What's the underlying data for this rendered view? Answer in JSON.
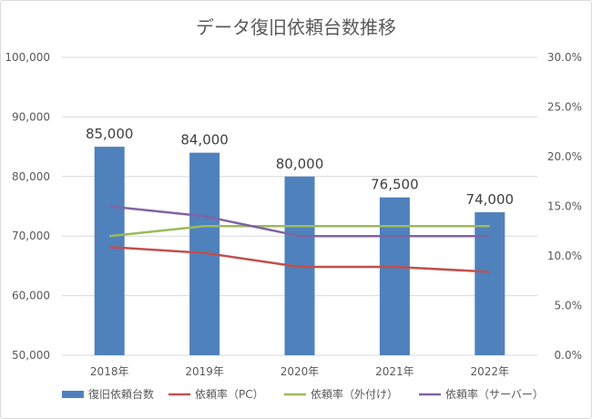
{
  "chart_data": {
    "type": "bar",
    "title": "データ復旧依頼台数推移",
    "categories": [
      "2018年",
      "2019年",
      "2020年",
      "2021年",
      "2022年"
    ],
    "bar_series": {
      "name": "復旧依頼台数",
      "values": [
        85000,
        84000,
        80000,
        76500,
        74000
      ],
      "data_labels": [
        "85,000",
        "84,000",
        "80,000",
        "76,500",
        "74,000"
      ],
      "color": "#4f81bd",
      "axis": "left"
    },
    "line_series": [
      {
        "name": "依頼率（PC）",
        "values": [
          10.9,
          10.3,
          8.9,
          8.9,
          8.4
        ],
        "color": "#c0504d",
        "axis": "right"
      },
      {
        "name": "依頼率（外付け）",
        "values": [
          12.0,
          13.0,
          13.0,
          13.0,
          13.0
        ],
        "color": "#9bbb59",
        "axis": "right"
      },
      {
        "name": "依頼率（サーバー）",
        "values": [
          15.0,
          14.0,
          12.0,
          12.0,
          12.0
        ],
        "color": "#8064a2",
        "axis": "right"
      }
    ],
    "y_left": {
      "ylim": [
        50000,
        100000
      ],
      "ticks": [
        50000,
        60000,
        70000,
        80000,
        90000,
        100000
      ],
      "tick_labels": [
        "50,000",
        "60,000",
        "70,000",
        "80,000",
        "90,000",
        "100,000"
      ]
    },
    "y_right": {
      "ylim": [
        0,
        30
      ],
      "ticks": [
        0,
        5,
        10,
        15,
        20,
        25,
        30
      ],
      "tick_labels": [
        "0.0%",
        "5.0%",
        "10.0%",
        "15.0%",
        "20.0%",
        "25.0%",
        "30.0%"
      ]
    },
    "grid": true,
    "legend_position": "bottom"
  }
}
